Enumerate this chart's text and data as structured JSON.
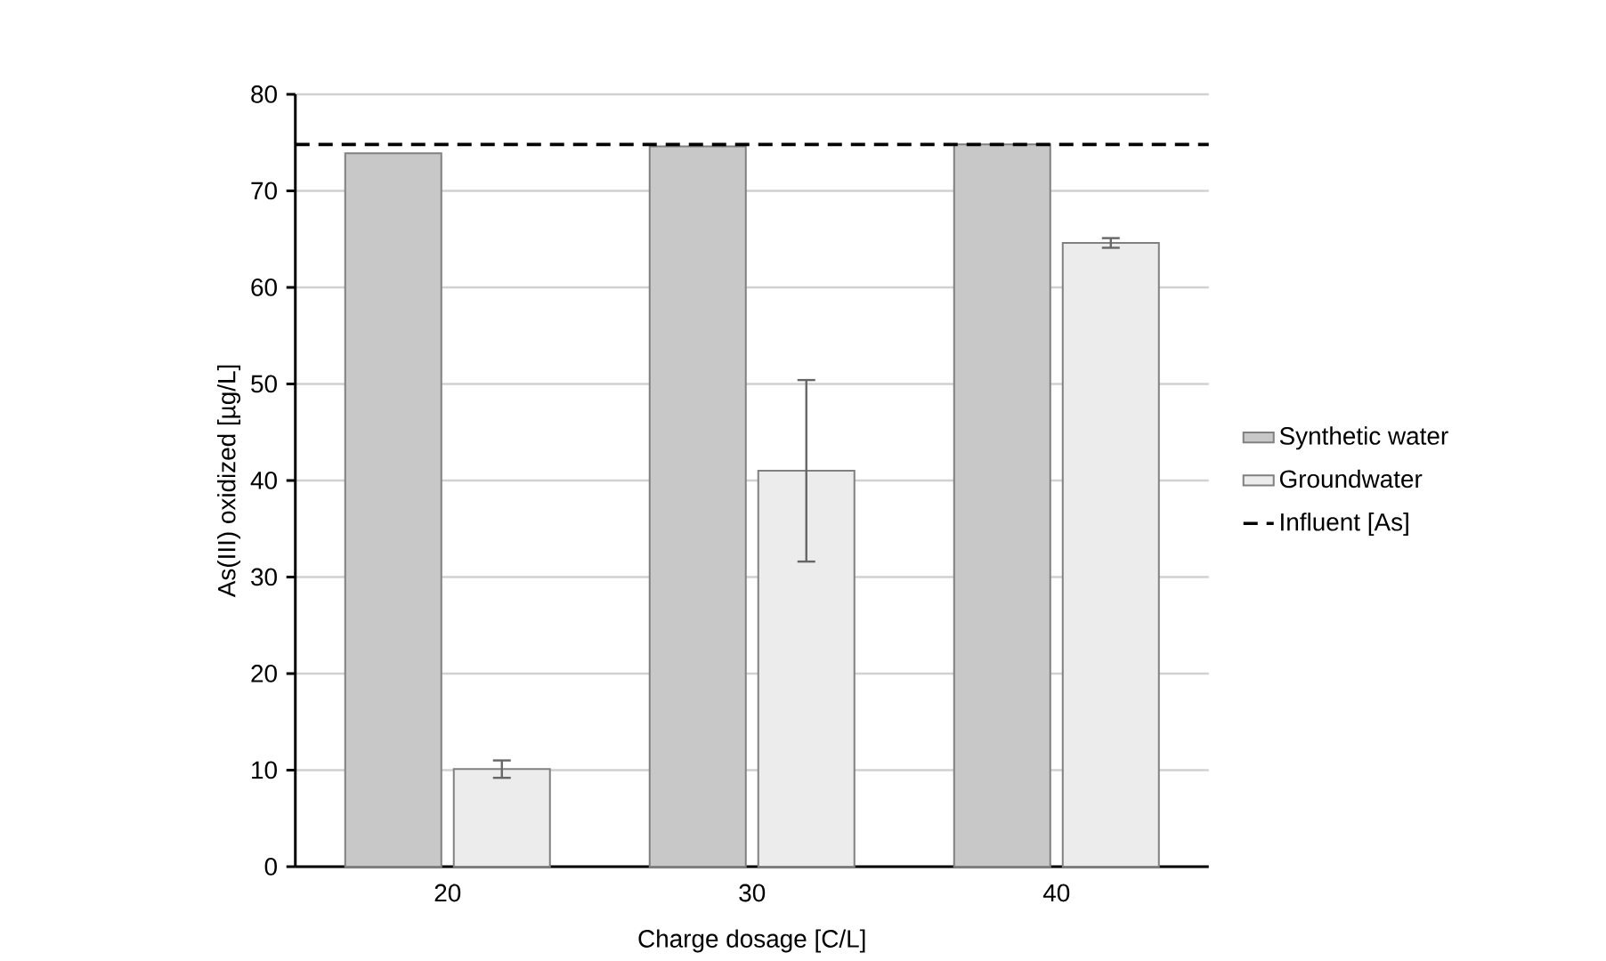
{
  "chart_data": {
    "type": "bar",
    "xlabel": "Charge dosage [C/L]",
    "ylabel": "As(III) oxidized [µg/L]",
    "categories": [
      "20",
      "30",
      "40"
    ],
    "series": [
      {
        "name": "Synthetic water",
        "color": "#c8c8c8",
        "values": [
          73.9,
          74.6,
          74.8
        ]
      },
      {
        "name": "Groundwater",
        "color": "#ececec",
        "values": [
          10.1,
          41,
          64.6
        ],
        "errors": [
          0.9,
          9.4,
          0.5
        ]
      }
    ],
    "ref_lines": [
      {
        "axis": "y",
        "value": 74.8,
        "label": "Influent [As]",
        "color": "#000000",
        "line_style": "dashed"
      }
    ],
    "ylim": [
      0,
      80
    ],
    "yticks": [
      0,
      10,
      20,
      30,
      40,
      50,
      60,
      70,
      80
    ],
    "grid": "y",
    "legend": "right"
  }
}
